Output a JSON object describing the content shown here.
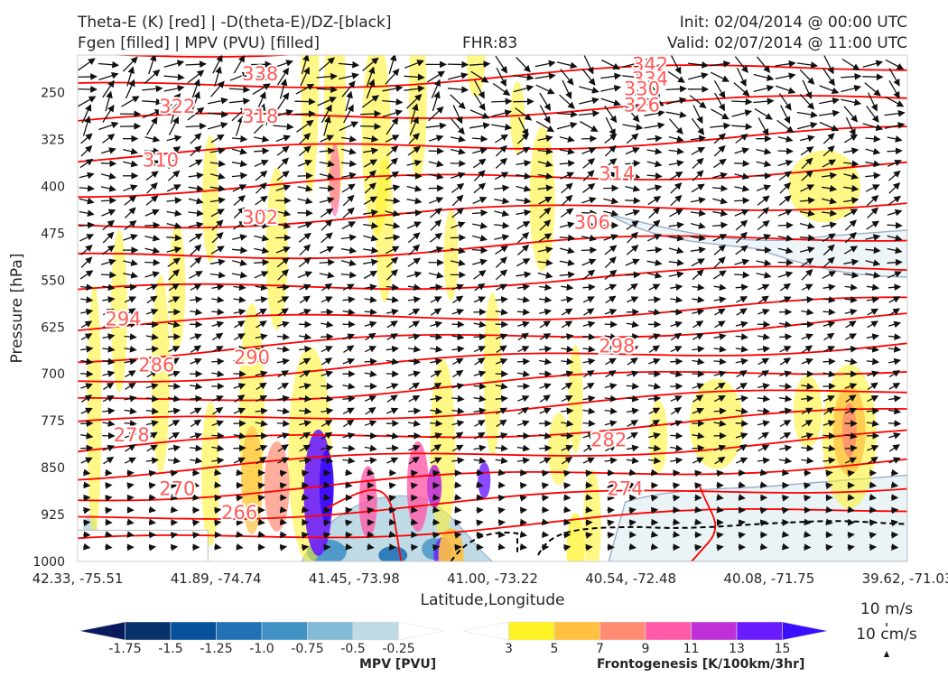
{
  "header": {
    "title_line1": "Theta-E (K) [red] | -D(theta-E)/DZ-[black]",
    "title_line2": "Fgen [filled] | MPV (PVU) [filled]",
    "fhr": "FHR:83",
    "init": "Init: 02/04/2014 @ 00:00 UTC",
    "valid": "Valid: 02/07/2014 @ 11:00 UTC"
  },
  "chart_data": {
    "type": "cross-section",
    "xlabel": "Latitude,Longitude",
    "ylabel": "Pressure [hPa]",
    "x_ticks": [
      "42.33, -75.51",
      "41.89, -74.74",
      "41.45, -73.98",
      "41.00, -73.22",
      "40.54, -72.48",
      "40.08, -71.75",
      "39.62, -71.03"
    ],
    "y_ticks": [
      250,
      325,
      400,
      475,
      550,
      625,
      700,
      775,
      850,
      925,
      1000
    ],
    "ylim": [
      1000,
      190
    ],
    "y_scale": "linear, pressure decreasing upward",
    "theta_e_contours": {
      "color": "#ff0000",
      "levels": [
        266,
        270,
        274,
        278,
        282,
        286,
        290,
        294,
        298,
        302,
        306,
        310,
        314,
        318,
        322,
        326,
        330,
        334,
        338,
        342
      ],
      "labels": [
        {
          "text": "342",
          "x": 0.69,
          "p": 205
        },
        {
          "text": "334",
          "x": 0.69,
          "p": 228
        },
        {
          "text": "330",
          "x": 0.68,
          "p": 244
        },
        {
          "text": "326",
          "x": 0.68,
          "p": 270
        },
        {
          "text": "338",
          "x": 0.22,
          "p": 220
        },
        {
          "text": "322",
          "x": 0.12,
          "p": 272
        },
        {
          "text": "318",
          "x": 0.22,
          "p": 288
        },
        {
          "text": "314",
          "x": 0.65,
          "p": 380
        },
        {
          "text": "310",
          "x": 0.1,
          "p": 358
        },
        {
          "text": "306",
          "x": 0.62,
          "p": 458
        },
        {
          "text": "302",
          "x": 0.22,
          "p": 450
        },
        {
          "text": "298",
          "x": 0.65,
          "p": 656
        },
        {
          "text": "294",
          "x": 0.055,
          "p": 612
        },
        {
          "text": "290",
          "x": 0.21,
          "p": 674
        },
        {
          "text": "286",
          "x": 0.095,
          "p": 686
        },
        {
          "text": "282",
          "x": 0.64,
          "p": 806
        },
        {
          "text": "278",
          "x": 0.065,
          "p": 798
        },
        {
          "text": "274",
          "x": 0.66,
          "p": 884
        },
        {
          "text": "270",
          "x": 0.12,
          "p": 884
        },
        {
          "text": "266",
          "x": 0.195,
          "p": 922
        }
      ]
    },
    "mpv_colorbar": {
      "label": "MPV [PVU]",
      "ticks": [
        "-1.75",
        "-1.5",
        "-1.25",
        "-1.0",
        "-0.75",
        "-0.5",
        "-0.25"
      ],
      "colors": [
        "#08195e",
        "#08306b",
        "#08519c",
        "#2171b5",
        "#4292c6",
        "#82bbd8",
        "#bfdbe6",
        "#ffffff"
      ]
    },
    "fgen_colorbar": {
      "label": "Frontogenesis [K/100km/3hr]",
      "ticks": [
        "3",
        "5",
        "7",
        "9",
        "11",
        "13",
        "15"
      ],
      "colors": [
        "#ffffff",
        "#fff222",
        "#ffc040",
        "#ff8c73",
        "#ff5aa8",
        "#c030d8",
        "#6b1cff",
        "#3c0eff"
      ]
    },
    "wind_key": {
      "label1": "10 m/s",
      "label2": "10 cm/s"
    }
  }
}
